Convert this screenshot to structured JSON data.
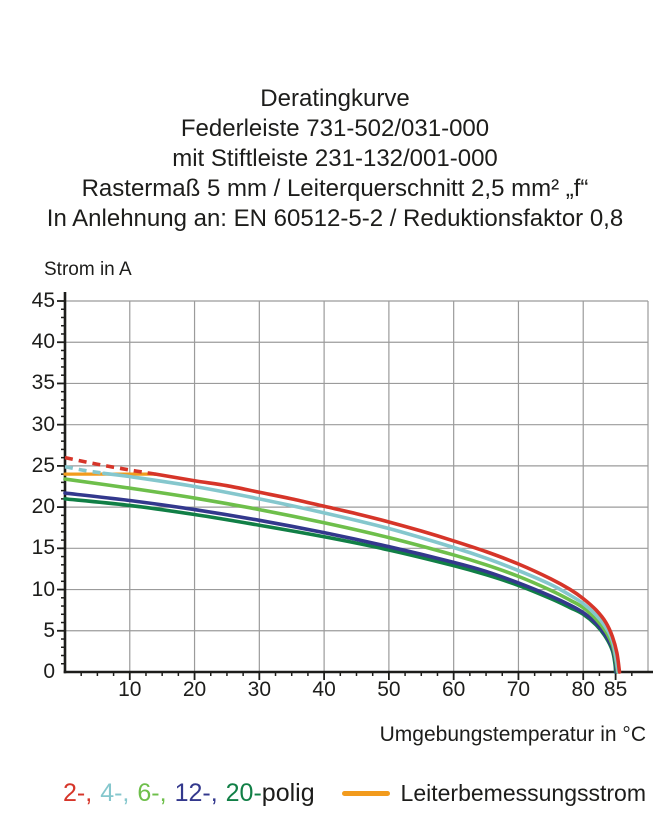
{
  "title": {
    "lines": [
      "Deratingkurve",
      "Federleiste 731-502/031-000",
      "mit Stiftleiste 231-132/001-000",
      "Rastermaß 5 mm / Leiterquerschnitt 2,5 mm² „f“",
      "In Anlehnung an: EN 60512-5-2 / Reduktionsfaktor 0,8"
    ]
  },
  "legend": {
    "poles": [
      {
        "label": "2-,",
        "color": "#d63529"
      },
      {
        "label": "4-,",
        "color": "#85c7cd"
      },
      {
        "label": "6-,",
        "color": "#6ebf4b"
      },
      {
        "label": "12-,",
        "color": "#33388d"
      },
      {
        "label": "20-",
        "color": "#117f46"
      }
    ],
    "poles_suffix": "polig",
    "rated_current": {
      "label": "Leiterbemessungsstrom",
      "color": "#f29b1d"
    }
  },
  "colors": {
    "grid": "#9b9b9b",
    "axis": "#1d1d1b",
    "text": "#1d1d1b"
  },
  "chart_data": {
    "type": "line",
    "title": "Deratingkurve",
    "xlabel": "Umgebungstemperatur in °C",
    "ylabel": "Strom in A",
    "xlim": [
      0,
      90
    ],
    "ylim": [
      0,
      45
    ],
    "x_major_ticks": [
      10,
      20,
      30,
      40,
      50,
      60,
      70,
      80,
      85
    ],
    "x_minor_step": 2.5,
    "y_major_ticks": [
      0,
      5,
      10,
      15,
      20,
      25,
      30,
      35,
      40,
      45
    ],
    "y_minor_step": 1,
    "grid": true,
    "legend_position": "bottom",
    "series": [
      {
        "name": "20-polig",
        "color": "#117f46",
        "points": [
          [
            0,
            21.0
          ],
          [
            10,
            20.2
          ],
          [
            20,
            19.1
          ],
          [
            30,
            17.8
          ],
          [
            40,
            16.4
          ],
          [
            50,
            14.8
          ],
          [
            60,
            12.9
          ],
          [
            65,
            11.8
          ],
          [
            70,
            10.5
          ],
          [
            75,
            8.9
          ],
          [
            78,
            7.8
          ],
          [
            80,
            7.0
          ],
          [
            82,
            5.7
          ],
          [
            83.5,
            4.2
          ],
          [
            84.5,
            2.6
          ],
          [
            84.9,
            1.0
          ],
          [
            85.0,
            0
          ]
        ]
      },
      {
        "name": "12-polig",
        "color": "#33388d",
        "points": [
          [
            0,
            21.7
          ],
          [
            10,
            20.8
          ],
          [
            20,
            19.7
          ],
          [
            30,
            18.4
          ],
          [
            40,
            16.9
          ],
          [
            50,
            15.2
          ],
          [
            60,
            13.3
          ],
          [
            65,
            12.2
          ],
          [
            70,
            10.8
          ],
          [
            75,
            9.2
          ],
          [
            78,
            8.1
          ],
          [
            80,
            7.2
          ],
          [
            82,
            5.9
          ],
          [
            83.5,
            4.4
          ],
          [
            84.5,
            2.9
          ],
          [
            85,
            1.2
          ],
          [
            85.1,
            0
          ]
        ]
      },
      {
        "name": "6-polig",
        "color": "#6ebf4b",
        "points": [
          [
            0,
            23.4
          ],
          [
            10,
            22.3
          ],
          [
            20,
            21.1
          ],
          [
            30,
            19.7
          ],
          [
            40,
            18.1
          ],
          [
            50,
            16.3
          ],
          [
            60,
            14.2
          ],
          [
            65,
            13.0
          ],
          [
            70,
            11.6
          ],
          [
            75,
            9.9
          ],
          [
            78,
            8.7
          ],
          [
            80,
            7.8
          ],
          [
            82,
            6.4
          ],
          [
            83.5,
            4.9
          ],
          [
            84.5,
            3.3
          ],
          [
            85,
            1.6
          ],
          [
            85.3,
            0
          ]
        ]
      },
      {
        "name": "4-polig",
        "color": "#85c7cd",
        "dash_until_x": 6,
        "points": [
          [
            0,
            24.9
          ],
          [
            3,
            24.45
          ],
          [
            6,
            24.1
          ],
          [
            10,
            23.7
          ],
          [
            20,
            22.5
          ],
          [
            30,
            21.0
          ],
          [
            40,
            19.3
          ],
          [
            50,
            17.4
          ],
          [
            60,
            15.1
          ],
          [
            65,
            13.8
          ],
          [
            70,
            12.3
          ],
          [
            75,
            10.6
          ],
          [
            78,
            9.3
          ],
          [
            80,
            8.3
          ],
          [
            82,
            6.9
          ],
          [
            83.5,
            5.4
          ],
          [
            84.5,
            3.8
          ],
          [
            85,
            2.0
          ],
          [
            85.4,
            0
          ]
        ]
      },
      {
        "name": "2-polig",
        "color": "#d63529",
        "dash_until_x": 14,
        "points": [
          [
            0,
            26.0
          ],
          [
            5,
            25.2
          ],
          [
            10,
            24.5
          ],
          [
            14,
            24.0
          ],
          [
            20,
            23.2
          ],
          [
            25,
            22.6
          ],
          [
            30,
            21.8
          ],
          [
            35,
            21.0
          ],
          [
            40,
            20.1
          ],
          [
            45,
            19.2
          ],
          [
            50,
            18.2
          ],
          [
            55,
            17.1
          ],
          [
            60,
            15.9
          ],
          [
            65,
            14.6
          ],
          [
            70,
            13.1
          ],
          [
            75,
            11.3
          ],
          [
            78,
            10.0
          ],
          [
            80,
            8.9
          ],
          [
            82,
            7.5
          ],
          [
            83.5,
            6.0
          ],
          [
            84.5,
            4.3
          ],
          [
            85.2,
            2.3
          ],
          [
            85.6,
            0
          ]
        ]
      }
    ],
    "reference_line": {
      "name": "Leiterbemessungsstrom",
      "color": "#f29b1d",
      "y": 24,
      "x_start": 0,
      "x_end": 14
    }
  }
}
